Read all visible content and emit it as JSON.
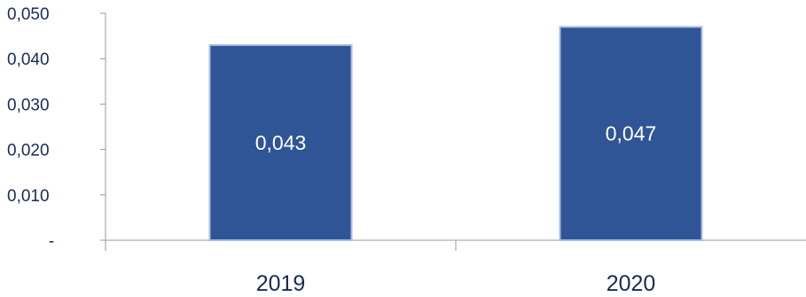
{
  "chart_data": {
    "type": "bar",
    "categories": [
      "2019",
      "2020"
    ],
    "values": [
      0.043,
      0.047
    ],
    "value_labels": [
      "0,043",
      "0,047"
    ],
    "ylim": [
      0,
      0.05
    ],
    "ytick_values": [
      0,
      0.01,
      0.02,
      0.03,
      0.04,
      0.05
    ],
    "ytick_labels": [
      "-",
      "0,010",
      "0,020",
      "0,030",
      "0,040",
      "0,050"
    ],
    "title": "",
    "xlabel": "",
    "ylabel": "",
    "grid": false,
    "legend": "none",
    "bar_color": "#2f5597",
    "bar_border_color": "#a9bce2",
    "text_color": "#1b2b55"
  }
}
